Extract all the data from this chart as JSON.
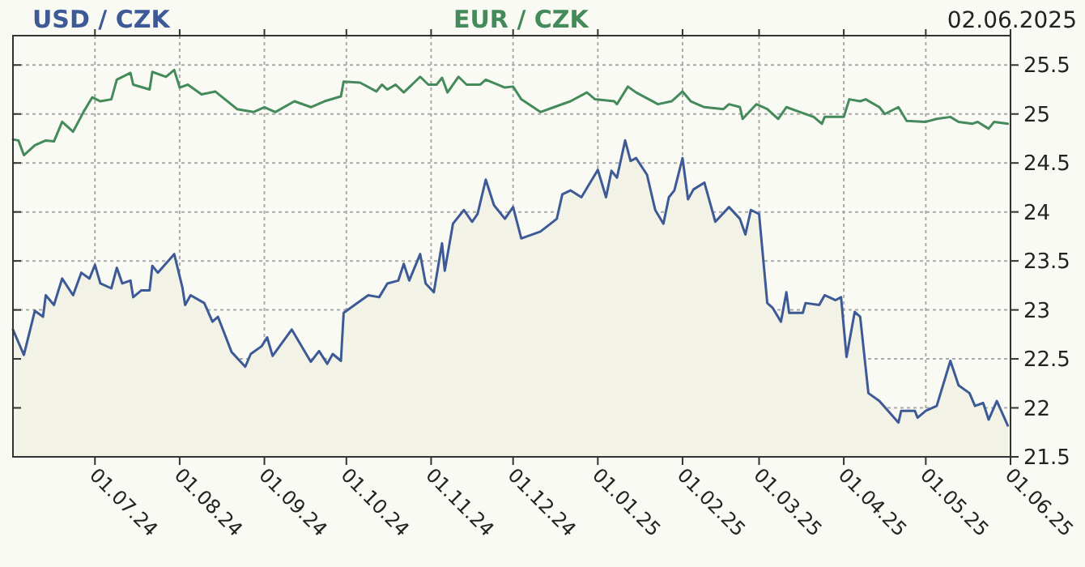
{
  "chart_data": {
    "type": "line",
    "legend": "top",
    "grid": true,
    "annotations": [
      "02.06.2025"
    ],
    "xlim": [
      "2024-06-01",
      "2025-06-01"
    ],
    "ylim": [
      21.5,
      25.8
    ],
    "yticks": [
      21.5,
      22,
      22.5,
      23,
      23.5,
      24,
      24.5,
      25,
      25.5
    ],
    "xticks": [
      {
        "value": "2024-07-01",
        "label": "01.07.24"
      },
      {
        "value": "2024-08-01",
        "label": "01.08.24"
      },
      {
        "value": "2024-09-01",
        "label": "01.09.24"
      },
      {
        "value": "2024-10-01",
        "label": "01.10.24"
      },
      {
        "value": "2024-11-01",
        "label": "01.11.24"
      },
      {
        "value": "2024-12-01",
        "label": "01.12.24"
      },
      {
        "value": "2025-01-01",
        "label": "01.01.25"
      },
      {
        "value": "2025-02-01",
        "label": "01.02.25"
      },
      {
        "value": "2025-03-01",
        "label": "01.03.25"
      },
      {
        "value": "2025-04-01",
        "label": "01.04.25"
      },
      {
        "value": "2025-05-01",
        "label": "01.05.25"
      },
      {
        "value": "2025-06-01",
        "label": "01.06.25"
      }
    ],
    "series": [
      {
        "name": "USD / CZK",
        "type": "area",
        "color": "#3d5a96",
        "x": [
          "2024-06-01",
          "2024-06-05",
          "2024-06-09",
          "2024-06-12",
          "2024-06-13",
          "2024-06-16",
          "2024-06-19",
          "2024-06-23",
          "2024-06-26",
          "2024-06-29",
          "2024-07-01",
          "2024-07-03",
          "2024-07-07",
          "2024-07-09",
          "2024-07-11",
          "2024-07-14",
          "2024-07-15",
          "2024-07-18",
          "2024-07-21",
          "2024-07-22",
          "2024-07-24",
          "2024-07-30",
          "2024-08-02",
          "2024-08-03",
          "2024-08-05",
          "2024-08-10",
          "2024-08-13",
          "2024-08-15",
          "2024-08-20",
          "2024-08-25",
          "2024-08-27",
          "2024-08-31",
          "2024-09-02",
          "2024-09-04",
          "2024-09-11",
          "2024-09-18",
          "2024-09-21",
          "2024-09-24",
          "2024-09-26",
          "2024-09-29",
          "2024-09-30",
          "2024-10-04",
          "2024-10-09",
          "2024-10-13",
          "2024-10-16",
          "2024-10-20",
          "2024-10-22",
          "2024-10-24",
          "2024-10-28",
          "2024-10-30",
          "2024-11-02",
          "2024-11-05",
          "2024-11-06",
          "2024-11-09",
          "2024-11-13",
          "2024-11-16",
          "2024-11-18",
          "2024-11-21",
          "2024-11-24",
          "2024-11-28",
          "2024-12-01",
          "2024-12-04",
          "2024-12-11",
          "2024-12-17",
          "2024-12-19",
          "2024-12-22",
          "2024-12-26",
          "2025-01-01",
          "2025-01-04",
          "2025-01-06",
          "2025-01-08",
          "2025-01-11",
          "2025-01-13",
          "2025-01-15",
          "2025-01-19",
          "2025-01-22",
          "2025-01-25",
          "2025-01-27",
          "2025-01-29",
          "2025-02-01",
          "2025-02-03",
          "2025-02-05",
          "2025-02-09",
          "2025-02-13",
          "2025-02-18",
          "2025-02-22",
          "2025-02-24",
          "2025-02-26",
          "2025-03-01",
          "2025-03-04",
          "2025-03-06",
          "2025-03-09",
          "2025-03-11",
          "2025-03-12",
          "2025-03-17",
          "2025-03-18",
          "2025-03-23",
          "2025-03-25",
          "2025-03-29",
          "2025-03-31",
          "2025-04-02",
          "2025-04-05",
          "2025-04-07",
          "2025-04-10",
          "2025-04-14",
          "2025-04-21",
          "2025-04-22",
          "2025-04-27",
          "2025-04-28",
          "2025-05-01",
          "2025-05-05",
          "2025-05-10",
          "2025-05-13",
          "2025-05-17",
          "2025-05-19",
          "2025-05-22",
          "2025-05-24",
          "2025-05-27",
          "2025-05-31"
        ],
        "values": [
          22.8,
          22.54,
          22.99,
          22.93,
          23.15,
          23.05,
          23.32,
          23.15,
          23.38,
          23.32,
          23.46,
          23.27,
          23.22,
          23.43,
          23.27,
          23.3,
          23.13,
          23.2,
          23.2,
          23.45,
          23.38,
          23.57,
          23.23,
          23.05,
          23.15,
          23.07,
          22.88,
          22.93,
          22.57,
          22.42,
          22.55,
          22.63,
          22.72,
          22.53,
          22.8,
          22.47,
          22.58,
          22.45,
          22.55,
          22.48,
          22.97,
          23.05,
          23.15,
          23.13,
          23.27,
          23.3,
          23.47,
          23.3,
          23.57,
          23.27,
          23.18,
          23.68,
          23.4,
          23.88,
          24.02,
          23.9,
          23.98,
          24.33,
          24.07,
          23.93,
          24.05,
          23.73,
          23.8,
          23.93,
          24.18,
          24.22,
          24.15,
          24.43,
          24.15,
          24.42,
          24.35,
          24.73,
          24.52,
          24.55,
          24.38,
          24.02,
          23.88,
          24.15,
          24.22,
          24.55,
          24.13,
          24.23,
          24.3,
          23.9,
          24.05,
          23.93,
          23.77,
          24.02,
          23.98,
          23.07,
          23.02,
          22.88,
          23.18,
          22.97,
          22.97,
          23.07,
          23.05,
          23.15,
          23.1,
          23.13,
          22.52,
          22.98,
          22.93,
          22.15,
          22.07,
          21.85,
          21.97,
          21.97,
          21.9,
          21.97,
          22.02,
          22.48,
          22.23,
          22.15,
          22.02,
          22.05,
          21.88,
          22.07,
          21.82
        ]
      },
      {
        "name": "EUR / CZK",
        "color": "#448a5a",
        "x": [
          "2024-06-01",
          "2024-06-03",
          "2024-06-05",
          "2024-06-09",
          "2024-06-13",
          "2024-06-16",
          "2024-06-19",
          "2024-06-23",
          "2024-06-27",
          "2024-06-30",
          "2024-07-03",
          "2024-07-07",
          "2024-07-09",
          "2024-07-14",
          "2024-07-15",
          "2024-07-21",
          "2024-07-22",
          "2024-07-27",
          "2024-07-30",
          "2024-08-01",
          "2024-08-04",
          "2024-08-09",
          "2024-08-14",
          "2024-08-22",
          "2024-08-28",
          "2024-09-01",
          "2024-09-05",
          "2024-09-12",
          "2024-09-18",
          "2024-09-23",
          "2024-09-29",
          "2024-09-30",
          "2024-10-06",
          "2024-10-12",
          "2024-10-14",
          "2024-10-16",
          "2024-10-19",
          "2024-10-22",
          "2024-10-28",
          "2024-10-31",
          "2024-11-03",
          "2024-11-05",
          "2024-11-07",
          "2024-11-11",
          "2024-11-14",
          "2024-11-19",
          "2024-11-21",
          "2024-11-28",
          "2024-12-01",
          "2024-12-04",
          "2024-12-11",
          "2024-12-16",
          "2024-12-22",
          "2024-12-28",
          "2024-12-31",
          "2025-01-07",
          "2025-01-08",
          "2025-01-12",
          "2025-01-15",
          "2025-01-23",
          "2025-01-28",
          "2025-02-01",
          "2025-02-04",
          "2025-02-09",
          "2025-02-16",
          "2025-02-18",
          "2025-02-22",
          "2025-02-23",
          "2025-02-28",
          "2025-03-04",
          "2025-03-08",
          "2025-03-11",
          "2025-03-16",
          "2025-03-21",
          "2025-03-24",
          "2025-03-25",
          "2025-04-01",
          "2025-04-03",
          "2025-04-07",
          "2025-04-09",
          "2025-04-14",
          "2025-04-16",
          "2025-04-21",
          "2025-04-24",
          "2025-05-01",
          "2025-05-05",
          "2025-05-10",
          "2025-05-13",
          "2025-05-18",
          "2025-05-20",
          "2025-05-24",
          "2025-05-26",
          "2025-05-31"
        ],
        "values": [
          24.74,
          24.73,
          24.58,
          24.68,
          24.73,
          24.72,
          24.92,
          24.82,
          25.03,
          25.17,
          25.13,
          25.15,
          25.35,
          25.42,
          25.3,
          25.25,
          25.43,
          25.38,
          25.45,
          25.27,
          25.3,
          25.2,
          25.23,
          25.05,
          25.02,
          25.07,
          25.02,
          25.13,
          25.07,
          25.13,
          25.18,
          25.33,
          25.32,
          25.23,
          25.3,
          25.25,
          25.3,
          25.22,
          25.38,
          25.3,
          25.3,
          25.37,
          25.22,
          25.38,
          25.3,
          25.3,
          25.35,
          25.27,
          25.28,
          25.15,
          25.02,
          25.07,
          25.13,
          25.22,
          25.15,
          25.13,
          25.1,
          25.28,
          25.22,
          25.1,
          25.13,
          25.23,
          25.13,
          25.07,
          25.05,
          25.1,
          25.07,
          24.95,
          25.1,
          25.05,
          24.95,
          25.07,
          25.02,
          24.97,
          24.9,
          24.97,
          24.97,
          25.15,
          25.13,
          25.15,
          25.07,
          25.0,
          25.07,
          24.93,
          24.92,
          24.95,
          24.97,
          24.92,
          24.9,
          24.92,
          24.85,
          24.92,
          24.9
        ]
      }
    ]
  }
}
